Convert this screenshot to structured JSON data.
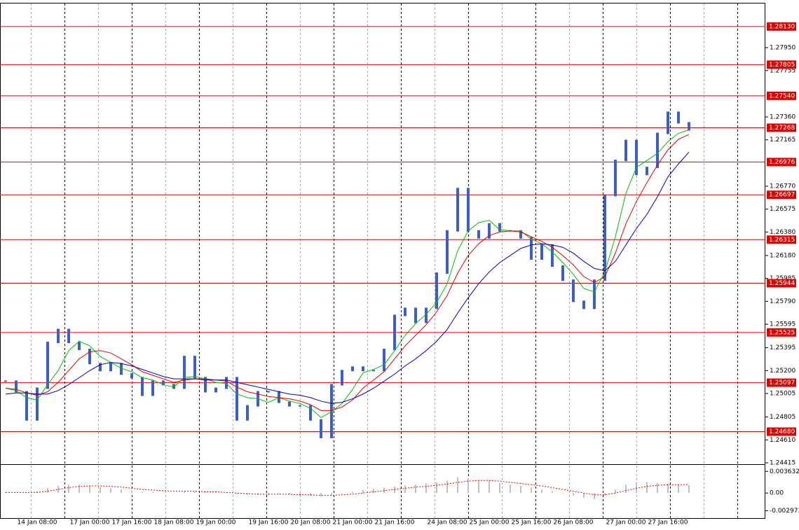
{
  "chart_data": {
    "type": "candlestick",
    "categories": [
      null,
      null,
      null,
      "14 Jan 08:00",
      null,
      null,
      null,
      null,
      "17 Jan 00:00",
      null,
      null,
      null,
      "17 Jan 16:00",
      null,
      null,
      null,
      "18 Jan 08:00",
      null,
      null,
      null,
      "19 Jan 00:00",
      null,
      null,
      null,
      null,
      "19 Jan 16:00",
      null,
      null,
      null,
      "20 Jan 08:00",
      null,
      null,
      null,
      "21 Jan 00:00",
      null,
      null,
      null,
      "21 Jan 16:00",
      null,
      null,
      null,
      null,
      "24 Jan 08:00",
      null,
      null,
      null,
      "25 Jan 00:00",
      null,
      null,
      null,
      "25 Jan 16:00",
      null,
      null,
      null,
      "26 Jan 08:00",
      null,
      null,
      null,
      null,
      "27 Jan 00:00",
      null,
      null,
      null,
      "27 Jan 16:00",
      null,
      null
    ],
    "close": [
      1.2511,
      1.2502,
      1.2478,
      1.2505,
      1.2544,
      1.2555,
      1.2544,
      1.2538,
      1.2526,
      1.252,
      1.2526,
      1.2517,
      1.2514,
      1.2499,
      1.2511,
      1.2508,
      1.2505,
      1.2532,
      1.2514,
      1.2502,
      1.2505,
      1.2514,
      1.2478,
      1.249,
      1.2502,
      1.2502,
      1.2493,
      1.249,
      1.249,
      1.2478,
      1.2463,
      1.2508,
      1.252,
      1.2523,
      1.252,
      1.252,
      1.2538,
      1.2567,
      1.2573,
      1.2561,
      1.2573,
      1.2603,
      1.2639,
      1.2675,
      1.2639,
      1.2633,
      1.2645,
      1.2639,
      1.2639,
      1.2633,
      1.2615,
      1.2627,
      1.2609,
      1.2597,
      1.2579,
      1.2573,
      1.2597,
      1.2669,
      1.2699,
      1.2716,
      1.2687,
      1.2693,
      1.2722,
      1.274,
      1.2731,
      1.2725
    ],
    "candle_color": "#3d5fc4",
    "series": [
      {
        "color": "#00c000",
        "values": [
          1.2505,
          1.2503,
          1.2497,
          1.2495,
          1.2508,
          1.252,
          1.2537,
          1.2545,
          1.2541,
          1.2532,
          1.2527,
          1.2522,
          1.2519,
          1.2514,
          1.2512,
          1.2508,
          1.2506,
          1.2514,
          1.2515,
          1.2513,
          1.251,
          1.2509,
          1.25,
          1.2497,
          1.2496,
          1.2493,
          1.2497,
          1.2494,
          1.2492,
          1.2488,
          1.248,
          1.2485,
          1.2492,
          1.2504,
          1.2518,
          1.2521,
          1.2525,
          1.2537,
          1.255,
          1.256,
          1.2568,
          1.2578,
          1.2594,
          1.2622,
          1.2639,
          1.2646,
          1.2648,
          1.264,
          1.2639,
          1.2639,
          1.2632,
          1.2628,
          1.2621,
          1.2612,
          1.2602,
          1.259,
          1.2587,
          1.2604,
          1.2634,
          1.2671,
          1.2693,
          1.2699,
          1.2705,
          1.2715,
          1.2722,
          1.2725
        ]
      },
      {
        "color": "#e00000",
        "values": [
          1.2505,
          1.2504,
          1.2501,
          1.2499,
          1.2502,
          1.251,
          1.252,
          1.253,
          1.2536,
          1.2537,
          1.2535,
          1.253,
          1.2525,
          1.2519,
          1.2516,
          1.2513,
          1.251,
          1.2512,
          1.2513,
          1.2513,
          1.2512,
          1.2511,
          1.2506,
          1.2502,
          1.25,
          1.2498,
          1.2497,
          1.2496,
          1.2494,
          1.2491,
          1.2486,
          1.2486,
          1.2489,
          1.2495,
          1.2505,
          1.2512,
          1.2519,
          1.253,
          1.2541,
          1.255,
          1.2559,
          1.257,
          1.2584,
          1.2603,
          1.2618,
          1.2628,
          1.2635,
          1.2638,
          1.2639,
          1.2638,
          1.2634,
          1.263,
          1.2625,
          1.2618,
          1.261,
          1.26,
          1.2595,
          1.26,
          1.262,
          1.2645,
          1.2664,
          1.268,
          1.2695,
          1.2708,
          1.2717,
          1.2721
        ]
      },
      {
        "color": "#0000b0",
        "values": [
          1.25,
          1.2501,
          1.2501,
          1.25,
          1.25,
          1.2503,
          1.2508,
          1.2514,
          1.252,
          1.2525,
          1.2527,
          1.2526,
          1.2524,
          1.2521,
          1.2518,
          1.2515,
          1.2513,
          1.2513,
          1.2513,
          1.2512,
          1.2512,
          1.2512,
          1.251,
          1.2508,
          1.2506,
          1.2504,
          1.2502,
          1.25,
          1.2499,
          1.2497,
          1.2494,
          1.2492,
          1.2493,
          1.2496,
          1.25,
          1.2505,
          1.2511,
          1.2517,
          1.2524,
          1.253,
          1.2537,
          1.2545,
          1.2555,
          1.2569,
          1.2582,
          1.2594,
          1.2604,
          1.2612,
          1.2618,
          1.2624,
          1.2627,
          1.2628,
          1.2627,
          1.2625,
          1.262,
          1.2613,
          1.2607,
          1.2605,
          1.2613,
          1.2627,
          1.2641,
          1.2653,
          1.2668,
          1.2685,
          1.2696,
          1.2706
        ]
      }
    ],
    "ylim": [
      1.24409,
      1.28326
    ],
    "yticks": [
      {
        "value": 1.2795,
        "label": "1.27950"
      },
      {
        "value": 1.27755,
        "label": "1.27755"
      },
      {
        "value": 1.2736,
        "label": "1.27360"
      },
      {
        "value": 1.27165,
        "label": "1.27165"
      },
      {
        "value": 1.2677,
        "label": "1.26770"
      },
      {
        "value": 1.26575,
        "label": "1.26575"
      },
      {
        "value": 1.2638,
        "label": "1.26380"
      },
      {
        "value": 1.2618,
        "label": "1.26180"
      },
      {
        "value": 1.25985,
        "label": "1.25985"
      },
      {
        "value": 1.2579,
        "label": "1.25790"
      },
      {
        "value": 1.25595,
        "label": "1.25595"
      },
      {
        "value": 1.25395,
        "label": "1.25395"
      },
      {
        "value": 1.252,
        "label": "1.25200"
      },
      {
        "value": 1.25005,
        "label": "1.25005"
      },
      {
        "value": 1.24805,
        "label": "1.24805"
      },
      {
        "value": 1.2461,
        "label": "1.24610"
      },
      {
        "value": 1.24415,
        "label": "1.24415"
      }
    ],
    "levels": [
      {
        "value": 1.2813,
        "label": "1.28130"
      },
      {
        "value": 1.27805,
        "label": "1.27805"
      },
      {
        "value": 1.2754,
        "label": "1.27540"
      },
      {
        "value": 1.27268,
        "label": "1.27268"
      },
      {
        "value": 1.26976,
        "label": "1.26976"
      },
      {
        "value": 1.26697,
        "label": "1.26697"
      },
      {
        "value": 1.26315,
        "label": "1.26315"
      },
      {
        "value": 1.25944,
        "label": "1.25944"
      },
      {
        "value": 1.25525,
        "label": "1.25525"
      },
      {
        "value": 1.25097,
        "label": "1.25097"
      },
      {
        "value": 1.2468,
        "label": "1.24680"
      }
    ],
    "level_color": "#e00000",
    "oscillator": {
      "type": "bar",
      "color": "#c0c0c0",
      "signal_color": "#e00000",
      "values": [
        0.0002,
        0.0001,
        0.0,
        0.0003,
        0.0008,
        0.0012,
        0.0014,
        0.0014,
        0.0012,
        0.001,
        0.0008,
        0.0006,
        0.0004,
        0.0002,
        0.0002,
        0.0001,
        0.0,
        0.0003,
        0.0003,
        0.0002,
        0.0001,
        0.0001,
        -0.0002,
        -0.0003,
        -0.0003,
        -0.0003,
        -0.0002,
        -0.0003,
        -0.0004,
        -0.0005,
        -0.0006,
        -0.0004,
        -0.0001,
        0.0002,
        0.0005,
        0.0007,
        0.0009,
        0.0011,
        0.0013,
        0.0014,
        0.0016,
        0.0018,
        0.0021,
        0.0026,
        0.0025,
        0.0022,
        0.002,
        0.0017,
        0.0014,
        0.0012,
        0.0009,
        0.0006,
        0.0003,
        0.0,
        -0.0004,
        -0.0008,
        -0.001,
        -0.0004,
        0.0006,
        0.0014,
        0.0018,
        0.0018,
        0.0017,
        0.0016,
        0.0015,
        0.0013
      ],
      "signal": [
        0.0001,
        0.0001,
        0.0001,
        0.0001,
        0.0003,
        0.0006,
        0.0009,
        0.0011,
        0.0012,
        0.0012,
        0.0011,
        0.001,
        0.0008,
        0.0006,
        0.0005,
        0.0004,
        0.0003,
        0.0003,
        0.0003,
        0.0002,
        0.0002,
        0.0001,
        0.0,
        -0.0001,
        -0.0002,
        -0.0002,
        -0.0002,
        -0.0002,
        -0.0003,
        -0.0003,
        -0.0004,
        -0.0004,
        -0.0003,
        -0.0002,
        0.0,
        0.0002,
        0.0004,
        0.0006,
        0.0008,
        0.001,
        0.0011,
        0.0013,
        0.0015,
        0.0018,
        0.002,
        0.0021,
        0.0021,
        0.002,
        0.0018,
        0.0016,
        0.0014,
        0.0012,
        0.0009,
        0.0006,
        0.0003,
        0.0,
        -0.0003,
        -0.0003,
        0.0,
        0.0004,
        0.0008,
        0.0011,
        0.0013,
        0.0014,
        0.0014,
        0.0014
      ],
      "ylim": [
        -0.0042,
        0.0046
      ],
      "yticks": [
        0.003632,
        {
          "value": 0,
          "label": "0.00"
        },
        -0.002973
      ]
    }
  }
}
